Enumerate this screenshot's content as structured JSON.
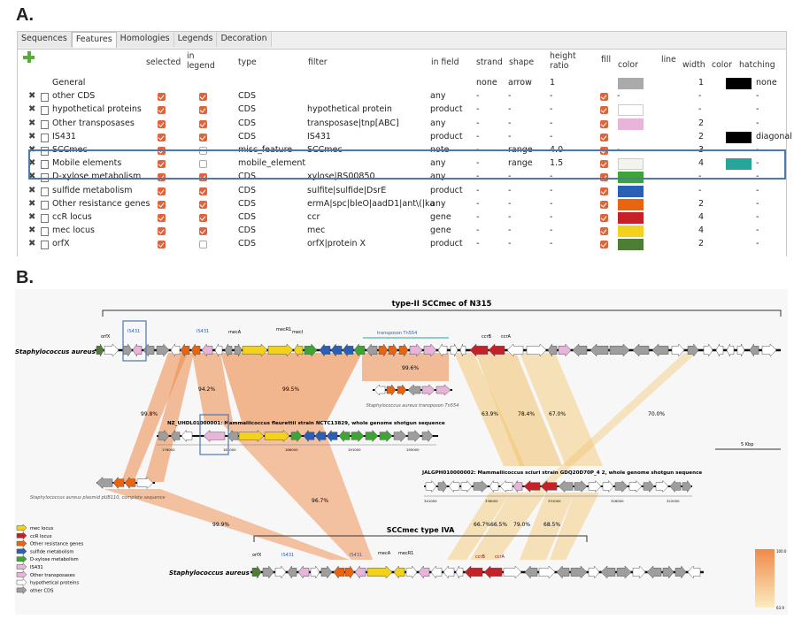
{
  "panel_a": {
    "label": "A.",
    "tabs": [
      "Sequences",
      "Features",
      "Homologies",
      "Legends",
      "Decoration"
    ],
    "headers": {
      "selected": "selected",
      "in_legend": "in legend",
      "type": "type",
      "filter": "filter",
      "in_field": "in field",
      "strand": "strand",
      "shape": "shape",
      "height_ratio": "height ratio",
      "fill": "fill",
      "color": "color",
      "line": "line",
      "width": "width",
      "line_color": "color",
      "hatching": "hatching"
    },
    "rows": [
      {
        "name": "General",
        "type": "",
        "filter": "",
        "field": "",
        "strand": "none",
        "shape": "arrow",
        "hr": "1",
        "fill": "",
        "color": "#aaaaaa",
        "width": "1",
        "lcolor": "#000000",
        "hatch": "none",
        "sel": null,
        "leg": null,
        "ctrl": false
      },
      {
        "name": "other CDS",
        "type": "CDS",
        "filter": "",
        "field": "any",
        "strand": "-",
        "shape": "-",
        "hr": "-",
        "fill": "on",
        "color": "",
        "fillDash": "-",
        "width": "-",
        "lcolor": "",
        "hatch": "-",
        "sel": true,
        "leg": true,
        "ctrl": true
      },
      {
        "name": "hypothetical proteins",
        "type": "CDS",
        "filter": "hypothetical protein",
        "field": "product",
        "strand": "-",
        "shape": "-",
        "hr": "-",
        "fill": "on",
        "color": "#ffffff",
        "width": "-",
        "lcolor": "",
        "hatch": "-",
        "sel": true,
        "leg": true,
        "ctrl": true
      },
      {
        "name": "Other transposases",
        "type": "CDS",
        "filter": "transposase|tnp[ABC]",
        "field": "any",
        "strand": "-",
        "shape": "-",
        "hr": "-",
        "fill": "on",
        "color": "#e8b4da",
        "width": "2",
        "lcolor": "",
        "hatch": "-",
        "sel": true,
        "leg": true,
        "ctrl": true
      },
      {
        "name": "IS431",
        "type": "CDS",
        "filter": "IS431",
        "field": "product",
        "strand": "-",
        "shape": "-",
        "hr": "-",
        "fill": "on",
        "color": "",
        "width": "2",
        "lcolor": "#000000",
        "hatch": "diagonal",
        "sel": true,
        "leg": true,
        "ctrl": true
      },
      {
        "name": "SCCmec",
        "type": "misc_feature",
        "filter": "SCCmec",
        "field": "note",
        "strand": "-",
        "shape": "range",
        "hr": "4.0",
        "fill": "on",
        "color": "",
        "fillDash": "-",
        "width": "3",
        "lcolor": "",
        "hatch": "-",
        "sel": true,
        "leg": false,
        "ctrl": true
      },
      {
        "name": "Mobile elements",
        "type": "mobile_element",
        "filter": "",
        "field": "any",
        "strand": "-",
        "shape": "range",
        "hr": "1.5",
        "fill": "on",
        "color": "#f4f4ee",
        "width": "4",
        "lcolor": "#26a69a",
        "hatch": "-",
        "sel": true,
        "leg": false,
        "ctrl": true
      },
      {
        "name": "D-xylose metabolism",
        "type": "CDS",
        "filter": "xylose|RS00850",
        "field": "any",
        "strand": "-",
        "shape": "-",
        "hr": "-",
        "fill": "on",
        "color": "#3ea535",
        "width": "-",
        "lcolor": "",
        "hatch": "-",
        "sel": true,
        "leg": true,
        "ctrl": true
      },
      {
        "name": "sulfide metabolism",
        "type": "CDS",
        "filter": "sulfite|sulfide|DsrE",
        "field": "product",
        "strand": "-",
        "shape": "-",
        "hr": "-",
        "fill": "on",
        "color": "#2a5fb4",
        "width": "-",
        "lcolor": "",
        "hatch": "-",
        "sel": true,
        "leg": true,
        "ctrl": true
      },
      {
        "name": "Other resistance genes",
        "type": "CDS",
        "filter": "ermA|spc|bleO|aadD1|ant\\(|ka",
        "field": "any",
        "strand": "-",
        "shape": "-",
        "hr": "-",
        "fill": "on",
        "color": "#e9640f",
        "width": "2",
        "lcolor": "",
        "hatch": "-",
        "sel": true,
        "leg": true,
        "ctrl": true
      },
      {
        "name": "ccR locus",
        "type": "CDS",
        "filter": "ccr",
        "field": "gene",
        "strand": "-",
        "shape": "-",
        "hr": "-",
        "fill": "on",
        "color": "#c62128",
        "width": "4",
        "lcolor": "",
        "hatch": "-",
        "sel": true,
        "leg": true,
        "ctrl": true
      },
      {
        "name": "mec locus",
        "type": "CDS",
        "filter": "mec",
        "field": "gene",
        "strand": "-",
        "shape": "-",
        "hr": "-",
        "fill": "on",
        "color": "#f2d21c",
        "width": "4",
        "lcolor": "",
        "hatch": "-",
        "sel": true,
        "leg": true,
        "ctrl": true
      },
      {
        "name": "orfX",
        "type": "CDS",
        "filter": "orfX|protein X",
        "field": "product",
        "strand": "-",
        "shape": "-",
        "hr": "-",
        "fill": "on",
        "color": "#4e7d36",
        "width": "2",
        "lcolor": "",
        "hatch": "-",
        "sel": true,
        "leg": false,
        "ctrl": true
      }
    ]
  },
  "panel_b": {
    "label": "B.",
    "top_bracket": "type-II SCCmec of N315",
    "bottom_bracket": "SCCmec type IVA",
    "track1_name": "Staphylococcus aureus",
    "track1_labels": [
      "orfX",
      "IS431",
      "IS431",
      "mecA",
      "mecR1",
      "mecI",
      "transposon Tn554",
      "ccrB",
      "ccrA"
    ],
    "tn554_name": "Staphylococcus aureus transposon Tn554",
    "fleurettii_name": "NZ_UHDL01000001: Mammaliicoccus fleurettii strain NCTC13829, whole genome shotgun sequence",
    "fleurettii_ticks": [
      "176000",
      "181000",
      "186000",
      "191000",
      "195000"
    ],
    "sciuri_name": "JALGPH010000002: Mammaliicoccus sciuri strain GDQ20D70P_4 2, whole genome shotgun sequence",
    "sciuri_ticks": [
      "341000",
      "336000",
      "331000",
      "326000",
      "322000"
    ],
    "pub110_name": "Staphylococcus aureus plasmid pUB110, complete sequence",
    "track4_name": "Staphylococcus aureus",
    "track4_labels": [
      "orfX",
      "IS431",
      "IS431",
      "mecA",
      "mecR1",
      "ccrB",
      "ccrA"
    ],
    "identities": [
      "99.6%",
      "94.2%",
      "99.5%",
      "99.8%",
      "63.9%",
      "78.4%",
      "67.0%",
      "70.0%",
      "96.7%",
      "99.9%",
      "66.7%",
      "66.5%",
      "79.0%",
      "68.5%"
    ],
    "scale_label": "5 Kbp",
    "colorbar_ticks": [
      "100.0",
      "63.9"
    ],
    "legend": [
      {
        "label": "mec locus",
        "color": "#f2d21c"
      },
      {
        "label": "ccR locus",
        "color": "#c62128"
      },
      {
        "label": "Other resistance genes",
        "color": "#e9640f"
      },
      {
        "label": "sulfide metabolism",
        "color": "#2a5fb4"
      },
      {
        "label": "D-xylose metabolism",
        "color": "#3ea535"
      },
      {
        "label": "IS431",
        "color": "#e8b4da"
      },
      {
        "label": "Other transposases",
        "color": "#e8b4da"
      },
      {
        "label": "hypothetical proteins",
        "color": "#ffffff"
      },
      {
        "label": "other CDS",
        "color": "#9e9e9e"
      }
    ]
  }
}
